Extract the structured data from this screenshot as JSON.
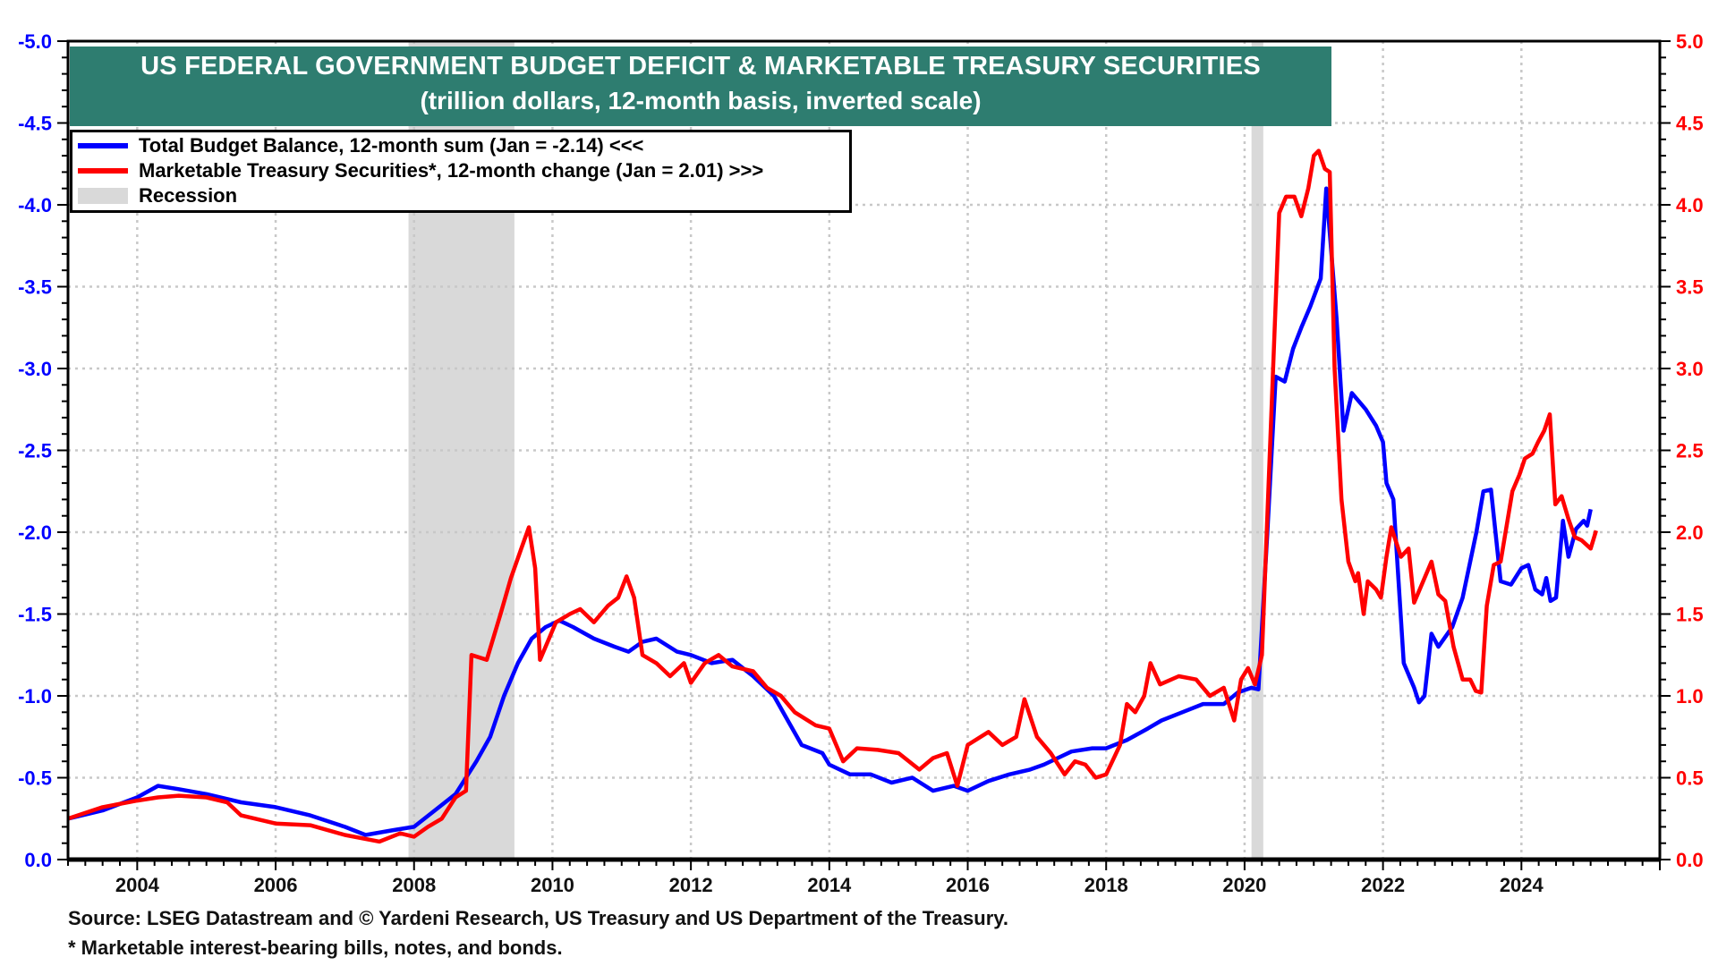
{
  "chart_data": {
    "type": "line",
    "title": "US FEDERAL GOVERNMENT BUDGET DEFICIT & MARKETABLE TREASURY SECURITIES",
    "subtitle": "(trillion dollars, 12-month basis, inverted scale)",
    "xlim": [
      2003.0,
      2026.0
    ],
    "x_ticks": [
      "2004",
      "2006",
      "2008",
      "2010",
      "2012",
      "2014",
      "2016",
      "2018",
      "2020",
      "2022",
      "2024"
    ],
    "y_left": {
      "lim": [
        -5.0,
        0.0
      ],
      "inverted": true,
      "color": "#0000ff",
      "ticks": [
        "-5.0",
        "-4.5",
        "-4.0",
        "-3.5",
        "-3.0",
        "-2.5",
        "-2.0",
        "-1.5",
        "-1.0",
        "-0.5",
        "0.0"
      ]
    },
    "y_right": {
      "lim": [
        5.0,
        0.0
      ],
      "color": "#ff0000",
      "ticks": [
        "5.0",
        "4.5",
        "4.0",
        "3.5",
        "3.0",
        "2.5",
        "2.0",
        "1.5",
        "1.0",
        "0.5",
        "0.0"
      ]
    },
    "grid": true,
    "legend_placement": "top-left",
    "recessions": [
      [
        2007.92,
        2009.45
      ],
      [
        2020.1,
        2020.27
      ]
    ],
    "recession_color": "#d9d9d9",
    "series": [
      {
        "name": "Total Budget Balance, 12-month sum (Jan = -2.14) <<<",
        "axis": "left",
        "color": "#0000ff",
        "points": [
          [
            2003.0,
            -0.25
          ],
          [
            2003.5,
            -0.3
          ],
          [
            2004.0,
            -0.38
          ],
          [
            2004.3,
            -0.45
          ],
          [
            2004.6,
            -0.43
          ],
          [
            2005.0,
            -0.4
          ],
          [
            2005.5,
            -0.35
          ],
          [
            2006.0,
            -0.32
          ],
          [
            2006.5,
            -0.27
          ],
          [
            2007.0,
            -0.2
          ],
          [
            2007.3,
            -0.15
          ],
          [
            2007.7,
            -0.18
          ],
          [
            2008.0,
            -0.2
          ],
          [
            2008.3,
            -0.3
          ],
          [
            2008.6,
            -0.4
          ],
          [
            2008.9,
            -0.6
          ],
          [
            2009.1,
            -0.75
          ],
          [
            2009.3,
            -1.0
          ],
          [
            2009.5,
            -1.2
          ],
          [
            2009.7,
            -1.35
          ],
          [
            2009.9,
            -1.42
          ],
          [
            2010.1,
            -1.46
          ],
          [
            2010.3,
            -1.42
          ],
          [
            2010.6,
            -1.35
          ],
          [
            2010.9,
            -1.3
          ],
          [
            2011.1,
            -1.27
          ],
          [
            2011.3,
            -1.33
          ],
          [
            2011.5,
            -1.35
          ],
          [
            2011.8,
            -1.27
          ],
          [
            2012.0,
            -1.25
          ],
          [
            2012.3,
            -1.2
          ],
          [
            2012.6,
            -1.22
          ],
          [
            2012.9,
            -1.12
          ],
          [
            2013.2,
            -1.0
          ],
          [
            2013.4,
            -0.85
          ],
          [
            2013.6,
            -0.7
          ],
          [
            2013.9,
            -0.65
          ],
          [
            2014.0,
            -0.58
          ],
          [
            2014.3,
            -0.52
          ],
          [
            2014.6,
            -0.52
          ],
          [
            2014.9,
            -0.47
          ],
          [
            2015.2,
            -0.5
          ],
          [
            2015.5,
            -0.42
          ],
          [
            2015.8,
            -0.45
          ],
          [
            2016.0,
            -0.42
          ],
          [
            2016.3,
            -0.48
          ],
          [
            2016.6,
            -0.52
          ],
          [
            2016.9,
            -0.55
          ],
          [
            2017.1,
            -0.58
          ],
          [
            2017.3,
            -0.62
          ],
          [
            2017.5,
            -0.66
          ],
          [
            2017.8,
            -0.68
          ],
          [
            2018.0,
            -0.68
          ],
          [
            2018.3,
            -0.73
          ],
          [
            2018.6,
            -0.8
          ],
          [
            2018.8,
            -0.85
          ],
          [
            2019.1,
            -0.9
          ],
          [
            2019.4,
            -0.95
          ],
          [
            2019.7,
            -0.95
          ],
          [
            2019.9,
            -1.02
          ],
          [
            2020.1,
            -1.05
          ],
          [
            2020.2,
            -1.04
          ],
          [
            2020.33,
            -2.0
          ],
          [
            2020.45,
            -2.95
          ],
          [
            2020.58,
            -2.92
          ],
          [
            2020.7,
            -3.12
          ],
          [
            2020.82,
            -3.25
          ],
          [
            2020.95,
            -3.38
          ],
          [
            2021.1,
            -3.55
          ],
          [
            2021.18,
            -4.1
          ],
          [
            2021.33,
            -3.3
          ],
          [
            2021.43,
            -2.62
          ],
          [
            2021.55,
            -2.85
          ],
          [
            2021.75,
            -2.75
          ],
          [
            2021.9,
            -2.65
          ],
          [
            2022.0,
            -2.55
          ],
          [
            2022.05,
            -2.3
          ],
          [
            2022.15,
            -2.2
          ],
          [
            2022.3,
            -1.2
          ],
          [
            2022.45,
            -1.05
          ],
          [
            2022.52,
            -0.96
          ],
          [
            2022.6,
            -1.0
          ],
          [
            2022.7,
            -1.38
          ],
          [
            2022.8,
            -1.3
          ],
          [
            2023.0,
            -1.42
          ],
          [
            2023.15,
            -1.6
          ],
          [
            2023.25,
            -1.8
          ],
          [
            2023.35,
            -2.0
          ],
          [
            2023.45,
            -2.25
          ],
          [
            2023.56,
            -2.26
          ],
          [
            2023.7,
            -1.7
          ],
          [
            2023.85,
            -1.68
          ],
          [
            2024.0,
            -1.78
          ],
          [
            2024.1,
            -1.8
          ],
          [
            2024.2,
            -1.65
          ],
          [
            2024.3,
            -1.62
          ],
          [
            2024.36,
            -1.72
          ],
          [
            2024.42,
            -1.58
          ],
          [
            2024.5,
            -1.6
          ],
          [
            2024.6,
            -2.07
          ],
          [
            2024.68,
            -1.85
          ],
          [
            2024.79,
            -2.02
          ],
          [
            2024.9,
            -2.07
          ],
          [
            2024.95,
            -2.04
          ],
          [
            2025.0,
            -2.14
          ]
        ]
      },
      {
        "name": "Marketable Treasury Securities*, 12-month change (Jan = 2.01) >>>",
        "axis": "right",
        "color": "#ff0000",
        "points": [
          [
            2003.0,
            0.25
          ],
          [
            2003.5,
            0.32
          ],
          [
            2004.0,
            0.36
          ],
          [
            2004.3,
            0.38
          ],
          [
            2004.6,
            0.39
          ],
          [
            2005.0,
            0.38
          ],
          [
            2005.3,
            0.35
          ],
          [
            2005.5,
            0.27
          ],
          [
            2005.8,
            0.24
          ],
          [
            2006.0,
            0.22
          ],
          [
            2006.5,
            0.21
          ],
          [
            2007.0,
            0.15
          ],
          [
            2007.5,
            0.11
          ],
          [
            2007.8,
            0.16
          ],
          [
            2008.0,
            0.14
          ],
          [
            2008.2,
            0.2
          ],
          [
            2008.4,
            0.25
          ],
          [
            2008.6,
            0.38
          ],
          [
            2008.75,
            0.42
          ],
          [
            2008.83,
            1.25
          ],
          [
            2009.05,
            1.22
          ],
          [
            2009.25,
            1.5
          ],
          [
            2009.4,
            1.72
          ],
          [
            2009.55,
            1.9
          ],
          [
            2009.66,
            2.03
          ],
          [
            2009.75,
            1.78
          ],
          [
            2009.82,
            1.22
          ],
          [
            2010.05,
            1.45
          ],
          [
            2010.25,
            1.5
          ],
          [
            2010.4,
            1.53
          ],
          [
            2010.6,
            1.45
          ],
          [
            2010.8,
            1.55
          ],
          [
            2010.95,
            1.6
          ],
          [
            2011.07,
            1.73
          ],
          [
            2011.18,
            1.6
          ],
          [
            2011.3,
            1.25
          ],
          [
            2011.5,
            1.2
          ],
          [
            2011.7,
            1.12
          ],
          [
            2011.9,
            1.2
          ],
          [
            2012.0,
            1.08
          ],
          [
            2012.2,
            1.2
          ],
          [
            2012.4,
            1.25
          ],
          [
            2012.6,
            1.18
          ],
          [
            2012.9,
            1.15
          ],
          [
            2013.1,
            1.05
          ],
          [
            2013.3,
            1.0
          ],
          [
            2013.5,
            0.9
          ],
          [
            2013.8,
            0.82
          ],
          [
            2014.0,
            0.8
          ],
          [
            2014.2,
            0.6
          ],
          [
            2014.4,
            0.68
          ],
          [
            2014.7,
            0.67
          ],
          [
            2015.0,
            0.65
          ],
          [
            2015.3,
            0.55
          ],
          [
            2015.5,
            0.62
          ],
          [
            2015.7,
            0.65
          ],
          [
            2015.85,
            0.45
          ],
          [
            2016.0,
            0.7
          ],
          [
            2016.3,
            0.78
          ],
          [
            2016.5,
            0.7
          ],
          [
            2016.7,
            0.75
          ],
          [
            2016.82,
            0.98
          ],
          [
            2017.0,
            0.75
          ],
          [
            2017.2,
            0.65
          ],
          [
            2017.4,
            0.52
          ],
          [
            2017.55,
            0.6
          ],
          [
            2017.7,
            0.58
          ],
          [
            2017.85,
            0.5
          ],
          [
            2018.0,
            0.52
          ],
          [
            2018.2,
            0.7
          ],
          [
            2018.3,
            0.95
          ],
          [
            2018.42,
            0.9
          ],
          [
            2018.55,
            1.0
          ],
          [
            2018.64,
            1.2
          ],
          [
            2018.78,
            1.07
          ],
          [
            2019.05,
            1.12
          ],
          [
            2019.3,
            1.1
          ],
          [
            2019.5,
            1.0
          ],
          [
            2019.7,
            1.05
          ],
          [
            2019.85,
            0.85
          ],
          [
            2019.95,
            1.1
          ],
          [
            2020.05,
            1.17
          ],
          [
            2020.15,
            1.07
          ],
          [
            2020.25,
            1.25
          ],
          [
            2020.5,
            3.95
          ],
          [
            2020.6,
            4.05
          ],
          [
            2020.72,
            4.05
          ],
          [
            2020.82,
            3.93
          ],
          [
            2020.92,
            4.1
          ],
          [
            2021.0,
            4.3
          ],
          [
            2021.07,
            4.33
          ],
          [
            2021.16,
            4.22
          ],
          [
            2021.23,
            4.2
          ],
          [
            2021.3,
            3.0
          ],
          [
            2021.4,
            2.2
          ],
          [
            2021.5,
            1.82
          ],
          [
            2021.6,
            1.7
          ],
          [
            2021.64,
            1.75
          ],
          [
            2021.72,
            1.5
          ],
          [
            2021.78,
            1.7
          ],
          [
            2021.9,
            1.65
          ],
          [
            2021.97,
            1.6
          ],
          [
            2022.05,
            1.85
          ],
          [
            2022.12,
            2.03
          ],
          [
            2022.26,
            1.85
          ],
          [
            2022.37,
            1.9
          ],
          [
            2022.45,
            1.57
          ],
          [
            2022.58,
            1.7
          ],
          [
            2022.7,
            1.82
          ],
          [
            2022.8,
            1.62
          ],
          [
            2022.9,
            1.58
          ],
          [
            2023.02,
            1.3
          ],
          [
            2023.15,
            1.1
          ],
          [
            2023.26,
            1.1
          ],
          [
            2023.34,
            1.03
          ],
          [
            2023.42,
            1.02
          ],
          [
            2023.5,
            1.55
          ],
          [
            2023.6,
            1.8
          ],
          [
            2023.7,
            1.82
          ],
          [
            2023.79,
            2.05
          ],
          [
            2023.87,
            2.25
          ],
          [
            2023.97,
            2.35
          ],
          [
            2024.05,
            2.45
          ],
          [
            2024.16,
            2.48
          ],
          [
            2024.24,
            2.55
          ],
          [
            2024.33,
            2.62
          ],
          [
            2024.41,
            2.72
          ],
          [
            2024.49,
            2.17
          ],
          [
            2024.58,
            2.22
          ],
          [
            2024.68,
            2.08
          ],
          [
            2024.77,
            1.97
          ],
          [
            2024.87,
            1.95
          ],
          [
            2025.0,
            1.9
          ],
          [
            2025.08,
            2.01
          ]
        ]
      }
    ],
    "legend_recession_label": "Recession"
  },
  "footer": {
    "source": "Source: LSEG Datastream and © Yardeni Research, US Treasury and US Department of the Treasury.",
    "note": "* Marketable interest-bearing bills, notes, and bonds."
  }
}
